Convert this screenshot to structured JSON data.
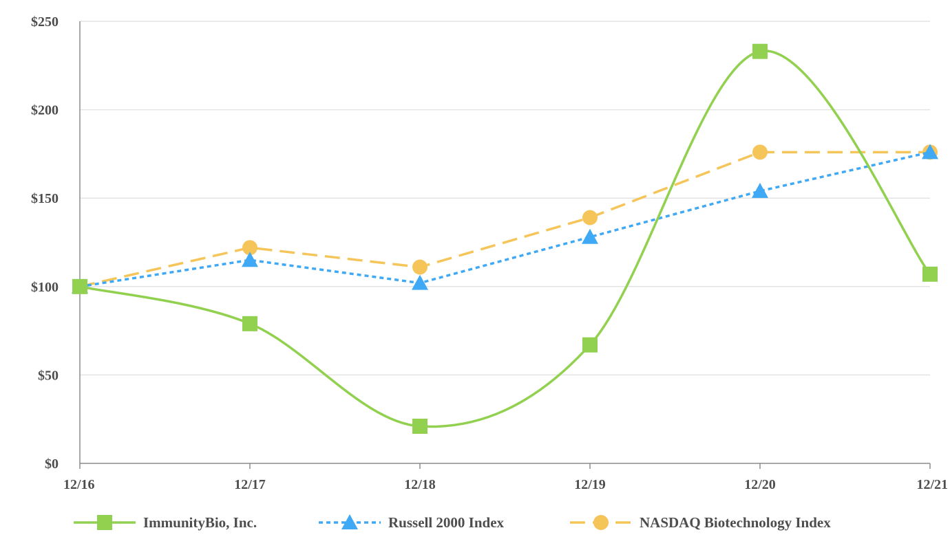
{
  "chart_data": {
    "type": "line",
    "title": "",
    "xlabel": "",
    "ylabel": "",
    "categories": [
      "12/16",
      "12/17",
      "12/18",
      "12/19",
      "12/20",
      "12/21"
    ],
    "ylim": [
      0,
      250
    ],
    "yticks": [
      0,
      50,
      100,
      150,
      200,
      250
    ],
    "ytick_labels": [
      "$0",
      "$50",
      "$100",
      "$150",
      "$200",
      "$250"
    ],
    "grid": true,
    "legend_position": "bottom",
    "series": [
      {
        "name": "ImmunityBio, Inc.",
        "values": [
          100,
          79,
          21,
          67,
          233,
          107
        ],
        "color": "#92d050",
        "marker": "square",
        "line_style": "solid",
        "smooth": true
      },
      {
        "name": "Russell 2000 Index",
        "values": [
          100,
          115,
          102,
          128,
          154,
          176
        ],
        "color": "#3fa9f5",
        "marker": "triangle",
        "line_style": "dotted",
        "smooth": false
      },
      {
        "name": "NASDAQ Biotechnology Index",
        "values": [
          100,
          122,
          111,
          139,
          176,
          176
        ],
        "color": "#f5c55a",
        "marker": "circle",
        "line_style": "dashed",
        "smooth": false
      }
    ]
  }
}
